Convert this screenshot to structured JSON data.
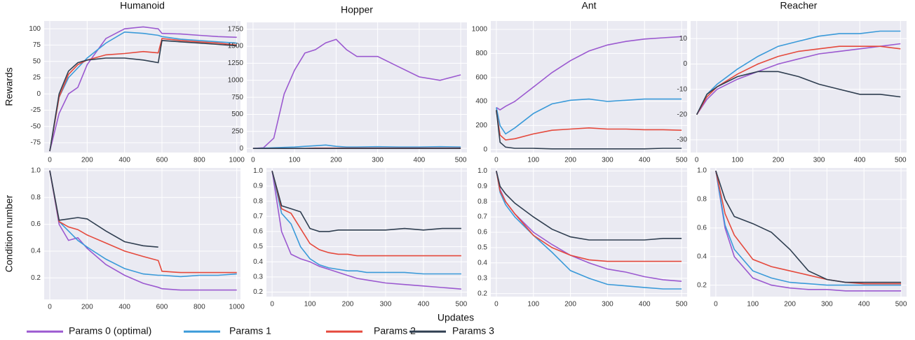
{
  "xlabel": "Updates",
  "legend": {
    "position": "bottom",
    "entries": [
      {
        "name": "Params 0 (optimal)",
        "color": "#9b59d0"
      },
      {
        "name": "Params 1",
        "color": "#3a9ad9"
      },
      {
        "name": "Params 2",
        "color": "#e5493c"
      },
      {
        "name": "Params 3",
        "color": "#2f3e50"
      }
    ]
  },
  "chart_data": [
    {
      "type": "line",
      "title": "Humanoid",
      "ylabel": "Rewards",
      "grid": true,
      "x": [
        0,
        50,
        100,
        150,
        200,
        300,
        400,
        500,
        580,
        600,
        700,
        800,
        900,
        1000
      ],
      "xlim": [
        -30,
        1020
      ],
      "xticks": [
        0,
        200,
        400,
        600,
        800,
        1000
      ],
      "ylim": [
        -90,
        112
      ],
      "yticks": [
        -75,
        -50,
        -25,
        0,
        25,
        50,
        75,
        100
      ],
      "series": [
        {
          "values": [
            -88,
            -30,
            0,
            10,
            45,
            85,
            100,
            103,
            100,
            93,
            92,
            90,
            88,
            87
          ]
        },
        {
          "values": [
            -88,
            -5,
            25,
            40,
            55,
            78,
            95,
            93,
            90,
            88,
            84,
            82,
            80,
            78
          ]
        },
        {
          "values": [
            -88,
            -5,
            30,
            45,
            52,
            60,
            62,
            65,
            63,
            85,
            82,
            80,
            78,
            75
          ]
        },
        {
          "values": [
            -88,
            0,
            35,
            48,
            52,
            55,
            55,
            52,
            48,
            82,
            80,
            78,
            76,
            74
          ]
        }
      ]
    },
    {
      "type": "line",
      "title": "Hopper",
      "grid": true,
      "x": [
        0,
        25,
        50,
        75,
        100,
        125,
        150,
        175,
        200,
        225,
        250,
        300,
        350,
        400,
        450,
        500
      ],
      "xlim": [
        -15,
        515
      ],
      "xticks": [
        0,
        100,
        200,
        300,
        400,
        500
      ],
      "ylim": [
        -60,
        1850
      ],
      "yticks": [
        0,
        250,
        500,
        750,
        1000,
        1250,
        1500,
        1750
      ],
      "series": [
        {
          "values": [
            0,
            10,
            150,
            800,
            1150,
            1400,
            1450,
            1550,
            1600,
            1450,
            1350,
            1350,
            1200,
            1050,
            1000,
            1080
          ]
        },
        {
          "values": [
            0,
            5,
            10,
            15,
            20,
            30,
            40,
            50,
            30,
            20,
            20,
            25,
            20,
            20,
            25,
            20
          ]
        },
        {
          "values": [
            0,
            0,
            0,
            0,
            0,
            0,
            5,
            5,
            5,
            5,
            5,
            5,
            5,
            5,
            5,
            5
          ]
        },
        {
          "values": [
            0,
            0,
            0,
            0,
            0,
            0,
            0,
            0,
            0,
            0,
            0,
            0,
            0,
            0,
            0,
            0
          ]
        }
      ]
    },
    {
      "type": "line",
      "title": "Ant",
      "grid": true,
      "x": [
        0,
        10,
        25,
        50,
        100,
        150,
        200,
        250,
        300,
        350,
        400,
        450,
        500
      ],
      "xlim": [
        -15,
        515
      ],
      "xticks": [
        0,
        100,
        200,
        300,
        400,
        500
      ],
      "ylim": [
        -25,
        1070
      ],
      "yticks": [
        0,
        200,
        400,
        600,
        800,
        1000
      ],
      "series": [
        {
          "values": [
            350,
            330,
            360,
            400,
            520,
            640,
            740,
            820,
            870,
            900,
            920,
            930,
            940
          ]
        },
        {
          "values": [
            350,
            200,
            130,
            180,
            300,
            380,
            410,
            420,
            400,
            410,
            420,
            420,
            420
          ]
        },
        {
          "values": [
            320,
            120,
            80,
            90,
            130,
            160,
            170,
            180,
            170,
            170,
            165,
            165,
            160
          ]
        },
        {
          "values": [
            330,
            60,
            20,
            10,
            10,
            5,
            5,
            5,
            5,
            5,
            5,
            10,
            10
          ]
        }
      ]
    },
    {
      "type": "line",
      "title": "Reacher",
      "grid": true,
      "x": [
        0,
        25,
        50,
        100,
        150,
        200,
        250,
        300,
        350,
        400,
        450,
        500
      ],
      "xlim": [
        -15,
        515
      ],
      "xticks": [
        0,
        100,
        200,
        300,
        400,
        500
      ],
      "ylim": [
        -35,
        17
      ],
      "yticks": [
        -30,
        -20,
        -10,
        0,
        10
      ],
      "series": [
        {
          "values": [
            -20,
            -14,
            -10,
            -6,
            -3,
            0,
            2,
            4,
            5,
            6,
            7,
            8
          ]
        },
        {
          "values": [
            -20,
            -12,
            -8,
            -2,
            3,
            7,
            9,
            11,
            12,
            12,
            13,
            13
          ]
        },
        {
          "values": [
            -20,
            -13,
            -9,
            -4,
            0,
            3,
            5,
            6,
            7,
            7,
            7,
            6
          ]
        },
        {
          "values": [
            -20,
            -12,
            -9,
            -5,
            -3,
            -3,
            -5,
            -8,
            -10,
            -12,
            -12,
            -13
          ]
        }
      ]
    },
    {
      "type": "line",
      "ylabel": "Condition number",
      "grid": true,
      "x": [
        0,
        50,
        100,
        150,
        200,
        300,
        400,
        500,
        580,
        600,
        700,
        800,
        900,
        1000
      ],
      "xlim": [
        -30,
        1020
      ],
      "xticks": [
        0,
        200,
        400,
        600,
        800,
        1000
      ],
      "ylim": [
        0.04,
        1.02
      ],
      "yticks": [
        0.2,
        0.4,
        0.6,
        0.8,
        {
          "value": 1,
          "label": "1.0"
        }
      ],
      "series": [
        {
          "values": [
            1.0,
            0.6,
            0.48,
            0.5,
            0.42,
            0.3,
            0.22,
            0.16,
            0.13,
            0.12,
            0.11,
            0.11,
            0.11,
            0.11
          ]
        },
        {
          "values": [
            1.0,
            0.62,
            0.55,
            0.48,
            0.43,
            0.34,
            0.27,
            0.23,
            0.22,
            0.22,
            0.21,
            0.22,
            0.22,
            0.23
          ]
        },
        {
          "values": [
            1.0,
            0.62,
            0.58,
            0.56,
            0.52,
            0.46,
            0.4,
            0.36,
            0.33,
            0.25,
            0.24,
            0.24,
            0.24,
            0.24
          ]
        },
        {
          "values": [
            1.0,
            0.63,
            0.64,
            0.65,
            0.64,
            0.55,
            0.47,
            0.44,
            0.43,
            null,
            null,
            null,
            null,
            null
          ]
        }
      ]
    },
    {
      "type": "line",
      "grid": true,
      "x": [
        0,
        25,
        50,
        75,
        100,
        125,
        150,
        175,
        200,
        225,
        250,
        300,
        350,
        400,
        450,
        500
      ],
      "xlim": [
        -15,
        515
      ],
      "xticks": [
        0,
        100,
        200,
        300,
        400,
        500
      ],
      "ylim": [
        0.17,
        1.02
      ],
      "yticks": [
        0.2,
        0.3,
        0.4,
        0.5,
        0.6,
        0.7,
        0.8,
        0.9,
        {
          "value": 1,
          "label": "1.0"
        }
      ],
      "series": [
        {
          "values": [
            1.0,
            0.6,
            0.45,
            0.42,
            0.4,
            0.37,
            0.35,
            0.33,
            0.31,
            0.29,
            0.28,
            0.26,
            0.25,
            0.24,
            0.23,
            0.22
          ]
        },
        {
          "values": [
            1.0,
            0.72,
            0.65,
            0.5,
            0.42,
            0.38,
            0.36,
            0.35,
            0.34,
            0.34,
            0.33,
            0.33,
            0.33,
            0.32,
            0.32,
            0.32
          ]
        },
        {
          "values": [
            1.0,
            0.75,
            0.72,
            0.62,
            0.52,
            0.48,
            0.46,
            0.45,
            0.45,
            0.44,
            0.44,
            0.44,
            0.44,
            0.44,
            0.44,
            0.44
          ]
        },
        {
          "values": [
            1.0,
            0.77,
            0.75,
            0.73,
            0.62,
            0.6,
            0.6,
            0.61,
            0.61,
            0.61,
            0.61,
            0.61,
            0.62,
            0.61,
            0.62,
            0.62
          ]
        }
      ]
    },
    {
      "type": "line",
      "grid": true,
      "x": [
        0,
        10,
        25,
        50,
        100,
        150,
        200,
        250,
        300,
        350,
        400,
        450,
        500
      ],
      "xlim": [
        -15,
        515
      ],
      "xticks": [
        0,
        100,
        200,
        300,
        400,
        500
      ],
      "ylim": [
        0.18,
        1.02
      ],
      "yticks": [
        0.2,
        0.3,
        0.4,
        0.5,
        0.6,
        0.7,
        0.8,
        0.9,
        {
          "value": 1,
          "label": "1.0"
        }
      ],
      "series": [
        {
          "values": [
            1.0,
            0.88,
            0.8,
            0.72,
            0.6,
            0.52,
            0.45,
            0.4,
            0.36,
            0.34,
            0.31,
            0.29,
            0.28
          ]
        },
        {
          "values": [
            1.0,
            0.86,
            0.78,
            0.7,
            0.58,
            0.47,
            0.35,
            0.3,
            0.26,
            0.25,
            0.24,
            0.23,
            0.23
          ]
        },
        {
          "values": [
            1.0,
            0.87,
            0.8,
            0.72,
            0.58,
            0.5,
            0.45,
            0.42,
            0.41,
            0.41,
            0.41,
            0.41,
            0.41
          ]
        },
        {
          "values": [
            1.0,
            0.9,
            0.85,
            0.79,
            0.7,
            0.62,
            0.57,
            0.55,
            0.55,
            0.55,
            0.55,
            0.56,
            0.56
          ]
        }
      ]
    },
    {
      "type": "line",
      "grid": true,
      "x": [
        0,
        25,
        50,
        100,
        150,
        200,
        250,
        300,
        350,
        400,
        450,
        500
      ],
      "xlim": [
        -15,
        515
      ],
      "xticks": [
        0,
        100,
        200,
        300,
        400,
        500
      ],
      "ylim": [
        0.12,
        1.02
      ],
      "yticks": [
        0.2,
        0.4,
        0.6,
        0.8,
        {
          "value": 1,
          "label": "1.0"
        }
      ],
      "series": [
        {
          "values": [
            1.0,
            0.6,
            0.4,
            0.25,
            0.2,
            0.18,
            0.17,
            0.17,
            0.16,
            0.16,
            0.16,
            0.16
          ]
        },
        {
          "values": [
            1.0,
            0.62,
            0.45,
            0.3,
            0.25,
            0.22,
            0.21,
            0.2,
            0.2,
            0.2,
            0.2,
            0.2
          ]
        },
        {
          "values": [
            1.0,
            0.7,
            0.55,
            0.38,
            0.33,
            0.3,
            0.27,
            0.24,
            0.22,
            0.21,
            0.21,
            0.21
          ]
        },
        {
          "values": [
            1.0,
            0.8,
            0.68,
            0.63,
            0.57,
            0.45,
            0.3,
            0.24,
            0.22,
            0.22,
            0.22,
            0.22
          ]
        }
      ]
    }
  ]
}
